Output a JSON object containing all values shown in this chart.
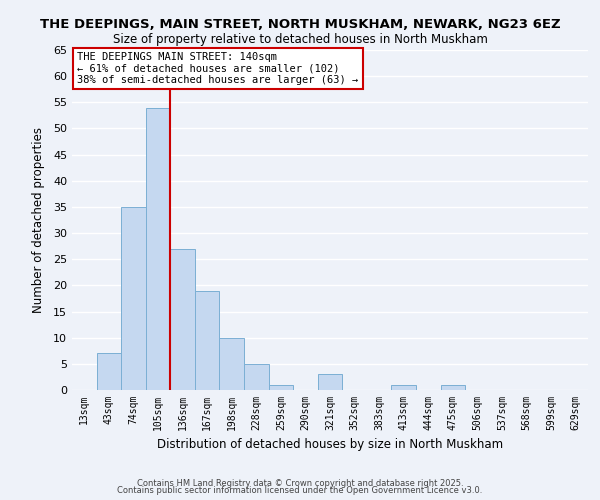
{
  "title": "THE DEEPINGS, MAIN STREET, NORTH MUSKHAM, NEWARK, NG23 6EZ",
  "subtitle": "Size of property relative to detached houses in North Muskham",
  "xlabel": "Distribution of detached houses by size in North Muskham",
  "ylabel": "Number of detached properties",
  "bar_labels": [
    "13sqm",
    "43sqm",
    "74sqm",
    "105sqm",
    "136sqm",
    "167sqm",
    "198sqm",
    "228sqm",
    "259sqm",
    "290sqm",
    "321sqm",
    "352sqm",
    "383sqm",
    "413sqm",
    "444sqm",
    "475sqm",
    "506sqm",
    "537sqm",
    "568sqm",
    "599sqm",
    "629sqm"
  ],
  "bar_values": [
    0,
    7,
    35,
    54,
    27,
    19,
    10,
    5,
    1,
    0,
    3,
    0,
    0,
    1,
    0,
    1,
    0,
    0,
    0,
    0,
    0
  ],
  "bar_color": "#c5d8f0",
  "bar_edge_color": "#7bafd4",
  "ylim": [
    0,
    65
  ],
  "yticks": [
    0,
    5,
    10,
    15,
    20,
    25,
    30,
    35,
    40,
    45,
    50,
    55,
    60,
    65
  ],
  "vline_x_idx": 3,
  "vline_color": "#cc0000",
  "annotation_title": "THE DEEPINGS MAIN STREET: 140sqm",
  "annotation_line1": "← 61% of detached houses are smaller (102)",
  "annotation_line2": "38% of semi-detached houses are larger (63) →",
  "annotation_box_color": "#ffffff",
  "annotation_box_edge": "#cc0000",
  "footer1": "Contains HM Land Registry data © Crown copyright and database right 2025.",
  "footer2": "Contains public sector information licensed under the Open Government Licence v3.0.",
  "bg_color": "#eef2f9",
  "grid_color": "#ffffff"
}
